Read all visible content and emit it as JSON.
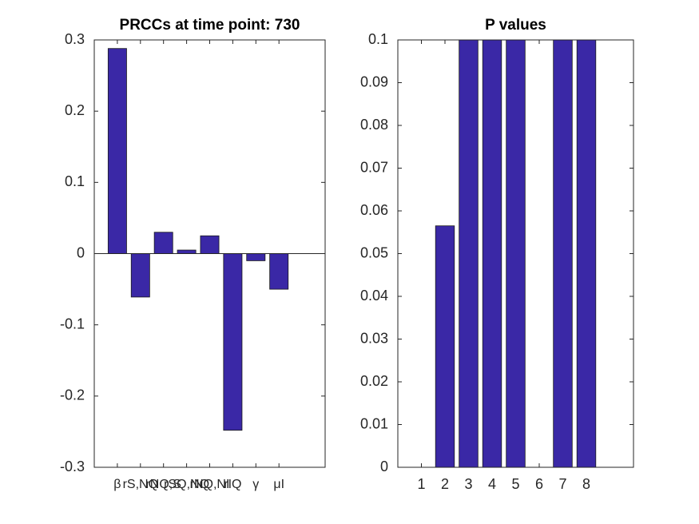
{
  "chart_data": [
    {
      "type": "bar",
      "title": "PRCCs at time point: 730",
      "x": [
        1,
        2,
        3,
        4,
        5,
        6,
        7,
        8
      ],
      "values": [
        0.288,
        -0.061,
        0.03,
        0.005,
        0.025,
        -0.248,
        -0.01,
        -0.05
      ],
      "color": "#3a28a6",
      "xlim": [
        0,
        10
      ],
      "xticks": [
        {
          "value": 1,
          "label": "β"
        },
        {
          "value": 2,
          "label": "rS,NQ"
        },
        {
          "value": 3,
          "label": "rNQ,S"
        },
        {
          "value": 4,
          "label": "rSQ,NQ"
        },
        {
          "value": 5,
          "label": "rNQ,NI"
        },
        {
          "value": 6,
          "label": "rIQ"
        },
        {
          "value": 7,
          "label": "γ"
        },
        {
          "value": 8,
          "label": "μI"
        }
      ],
      "ylim": [
        -0.3,
        0.3
      ],
      "yticks": [
        -0.3,
        -0.2,
        -0.1,
        0,
        0.1,
        0.2,
        0.3
      ]
    },
    {
      "type": "bar",
      "title": "P values",
      "x": [
        1,
        2,
        3,
        4,
        5,
        6,
        7,
        8
      ],
      "values": [
        0,
        0.0565,
        0.1,
        0.1,
        0.1,
        0,
        0.1,
        0.1
      ],
      "color": "#3a28a6",
      "xlim": [
        0,
        10
      ],
      "xticks": [
        1,
        2,
        3,
        4,
        5,
        6,
        7,
        8
      ],
      "ylim": [
        0,
        0.1
      ],
      "yticks": [
        0,
        0.01,
        0.02,
        0.03,
        0.04,
        0.05,
        0.06,
        0.07,
        0.08,
        0.09,
        0.1
      ]
    }
  ]
}
